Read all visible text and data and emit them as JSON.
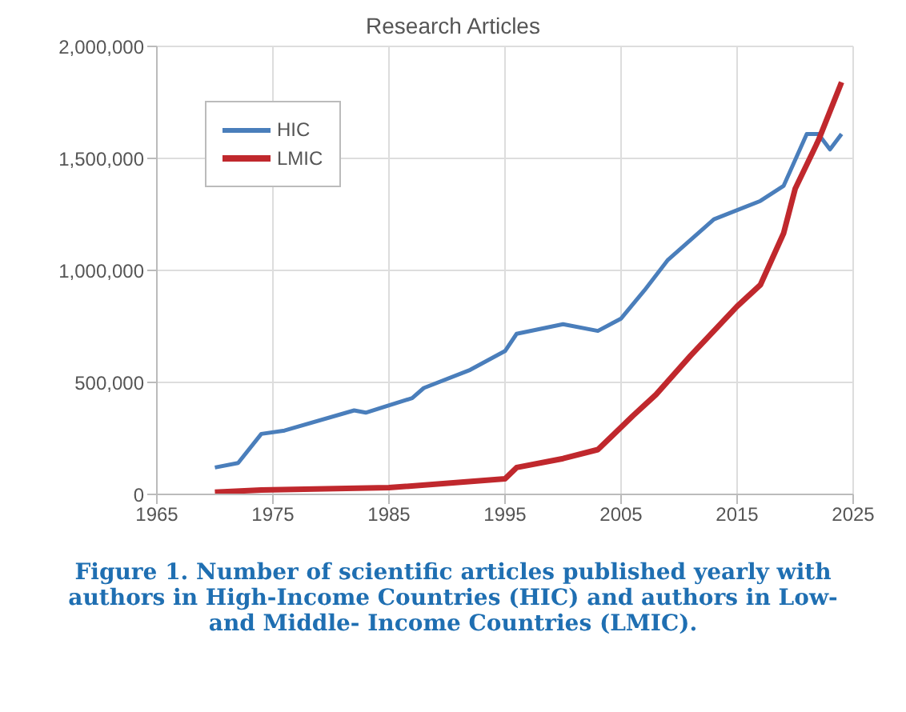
{
  "chart_data": {
    "type": "line",
    "title": "Research Articles",
    "xlim": [
      1965,
      2025
    ],
    "xticks": [
      1965,
      1975,
      1985,
      1995,
      2005,
      2015,
      2025
    ],
    "ylim": [
      0,
      2000000
    ],
    "yticks": [
      {
        "value": 0,
        "label": "0"
      },
      {
        "value": 500000,
        "label": "500,000"
      },
      {
        "value": 1000000,
        "label": "1,000,000"
      },
      {
        "value": 1500000,
        "label": "1,500,000"
      },
      {
        "value": 2000000,
        "label": "2,000,000"
      }
    ],
    "grid": true,
    "legend": "top left",
    "marker": "none",
    "line_style": "solid",
    "series": [
      {
        "name": "HIC",
        "color": "#4a7ebb",
        "x": [
          1970,
          1972,
          1974,
          1976,
          1982,
          1983,
          1987,
          1988,
          1992,
          1995,
          1996,
          2000,
          2003,
          2005,
          2007,
          2009,
          2013,
          2017,
          2019,
          2021,
          2022,
          2023,
          2024
        ],
        "values": [
          120000,
          140000,
          270000,
          285000,
          375000,
          365000,
          430000,
          475000,
          556000,
          640000,
          717000,
          760000,
          730000,
          785000,
          910000,
          1045000,
          1228000,
          1310000,
          1377000,
          1609000,
          1609000,
          1540000,
          1609000
        ]
      },
      {
        "name": "LMIC",
        "color": "#c0282d",
        "x": [
          1970,
          1974,
          1985,
          1995,
          1996,
          2000,
          2003,
          2006,
          2008,
          2011,
          2015,
          2017,
          2019,
          2020,
          2022,
          2024
        ],
        "values": [
          10000,
          20000,
          30000,
          70000,
          120000,
          160000,
          200000,
          350000,
          445000,
          620000,
          840000,
          935000,
          1165000,
          1364000,
          1580000,
          1840000
        ]
      }
    ],
    "annotations": [
      "Figure 1. Number of scientific articles published yearly with authors in High-Income Countries (HIC) and authors in Low- and Middle- Income Countries (LMIC)."
    ]
  }
}
